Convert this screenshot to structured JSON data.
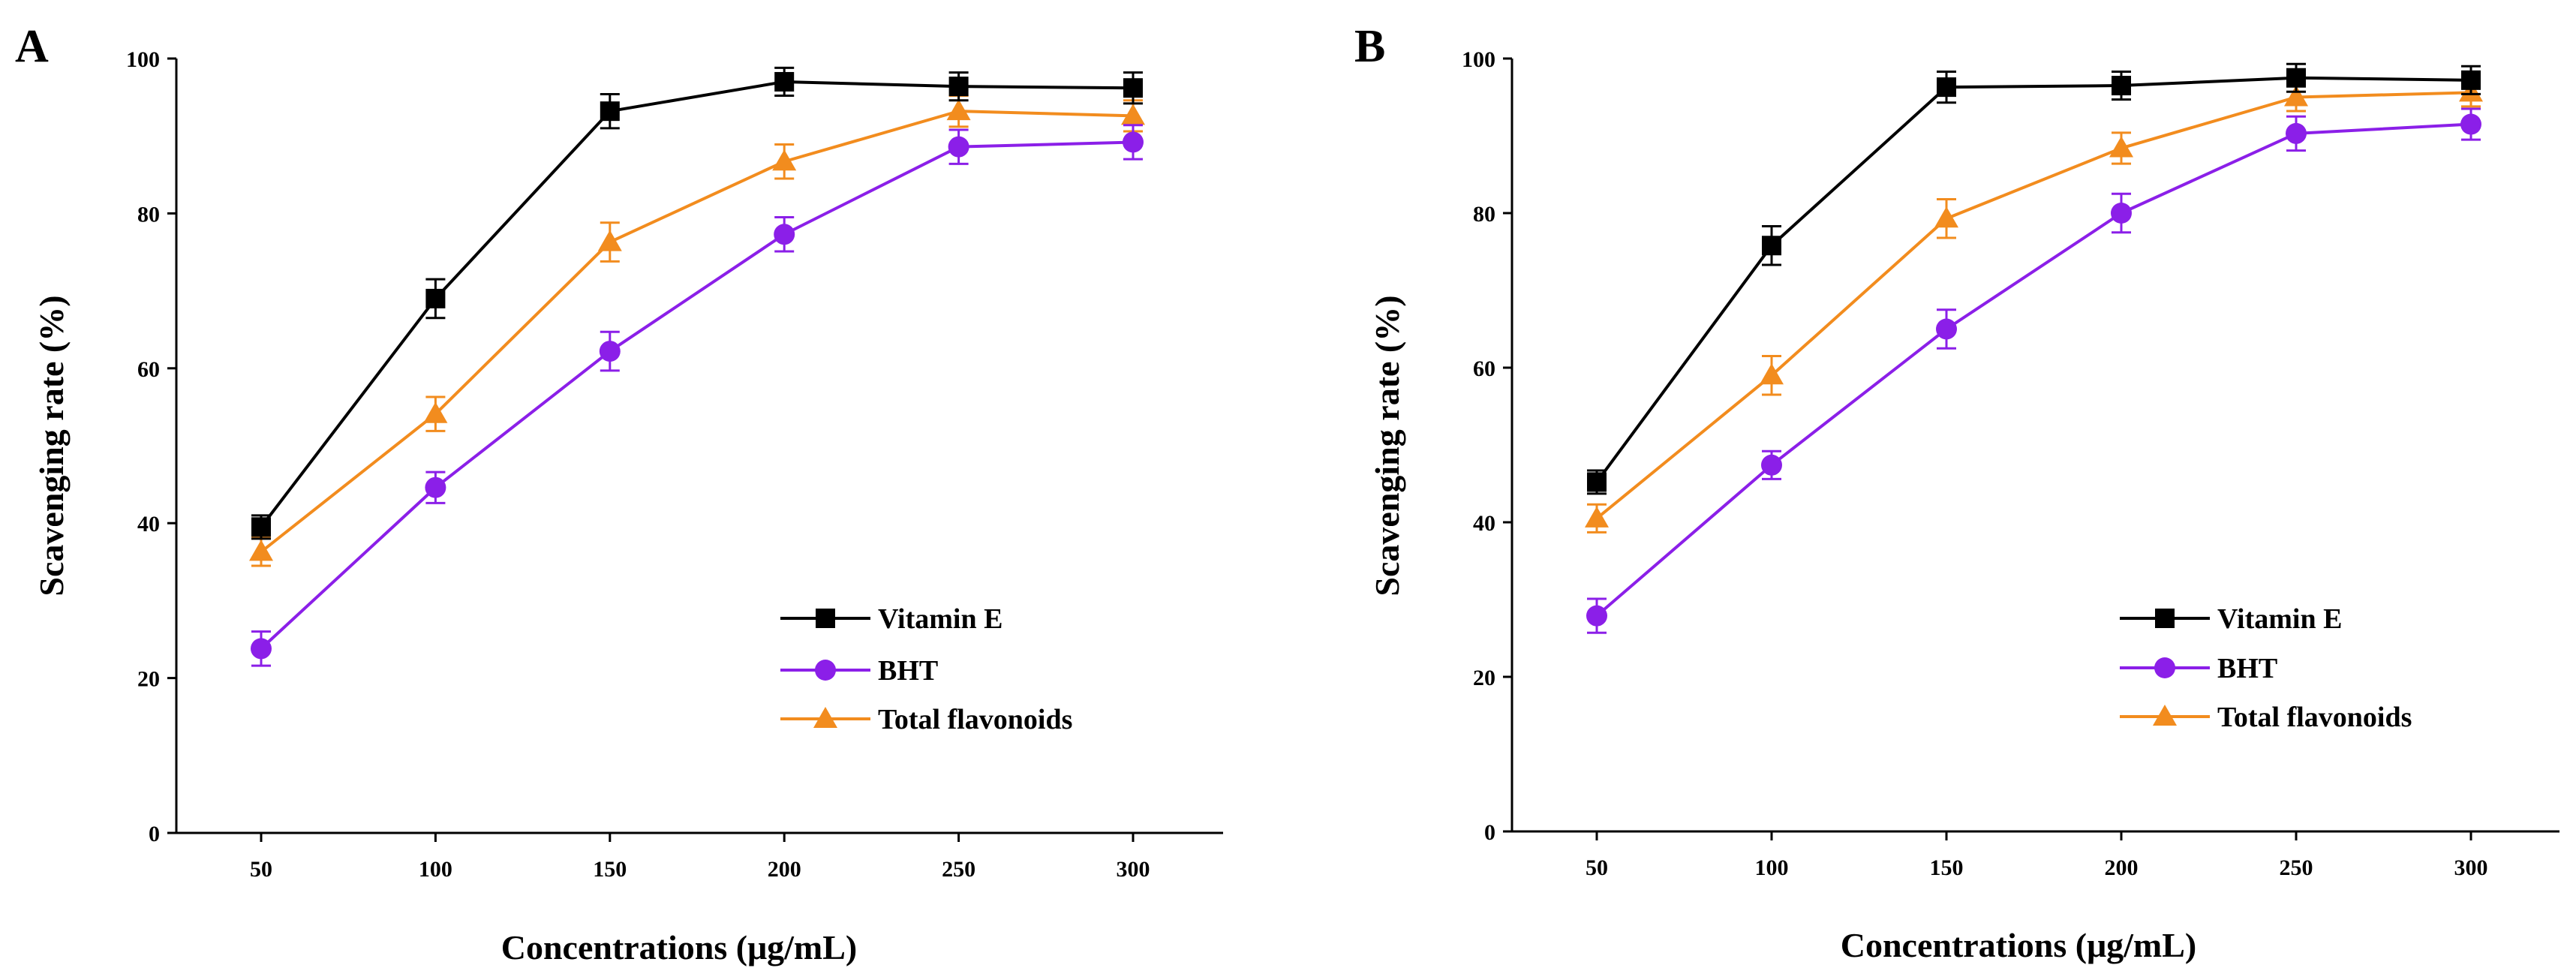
{
  "figure": {
    "panels": [
      "A",
      "B"
    ]
  },
  "chart_data": [
    {
      "type": "line",
      "panel_label": "A",
      "title": "",
      "xlabel": "Concentrations (μg/mL)",
      "ylabel": "Scavenging rate (%)",
      "categories": [
        "50",
        "100",
        "150",
        "200",
        "250",
        "300"
      ],
      "ylim": [
        0,
        100
      ],
      "yticks": [
        "0",
        "20",
        "40",
        "60",
        "80",
        "100"
      ],
      "legend_position": "bottom-right",
      "grid": false,
      "series": [
        {
          "name": "Vitamin E",
          "color": "#000000",
          "marker": "square",
          "values": [
            39.5,
            69,
            93.2,
            97,
            96.4,
            96.2
          ],
          "errors": [
            1.5,
            2.5,
            2.2,
            1.8,
            1.8,
            2.0
          ]
        },
        {
          "name": "BHT",
          "color": "#8B1FE8",
          "marker": "circle",
          "values": [
            23.8,
            44.6,
            62.2,
            77.3,
            88.6,
            89.2
          ],
          "errors": [
            2.2,
            2.0,
            2.5,
            2.2,
            2.2,
            2.2
          ]
        },
        {
          "name": "Total flavonoids",
          "color": "#F28C1E",
          "marker": "triangle",
          "values": [
            36.3,
            54.1,
            76.3,
            86.7,
            93.2,
            92.6
          ],
          "errors": [
            1.8,
            2.2,
            2.5,
            2.2,
            2.0,
            2.0
          ]
        }
      ]
    },
    {
      "type": "line",
      "panel_label": "B",
      "title": "",
      "xlabel": "Concentrations (μg/mL)",
      "ylabel": "Scavenging rate (%)",
      "categories": [
        "50",
        "100",
        "150",
        "200",
        "250",
        "300"
      ],
      "ylim": [
        0,
        100
      ],
      "yticks": [
        "0",
        "20",
        "40",
        "60",
        "80",
        "100"
      ],
      "legend_position": "bottom-right",
      "grid": false,
      "series": [
        {
          "name": "Vitamin E",
          "color": "#000000",
          "marker": "square",
          "values": [
            45.2,
            75.8,
            96.3,
            96.5,
            97.5,
            97.2
          ],
          "errors": [
            1.5,
            2.5,
            2.0,
            1.8,
            1.8,
            1.8
          ]
        },
        {
          "name": "BHT",
          "color": "#8B1FE8",
          "marker": "circle",
          "values": [
            27.9,
            47.4,
            65.0,
            80.0,
            90.3,
            91.5
          ],
          "errors": [
            2.2,
            1.8,
            2.5,
            2.5,
            2.2,
            2.0
          ]
        },
        {
          "name": "Total flavonoids",
          "color": "#F28C1E",
          "marker": "triangle",
          "values": [
            40.5,
            59.0,
            79.3,
            88.4,
            95.0,
            95.6
          ],
          "errors": [
            1.8,
            2.5,
            2.5,
            2.0,
            1.8,
            1.8
          ]
        }
      ]
    }
  ]
}
